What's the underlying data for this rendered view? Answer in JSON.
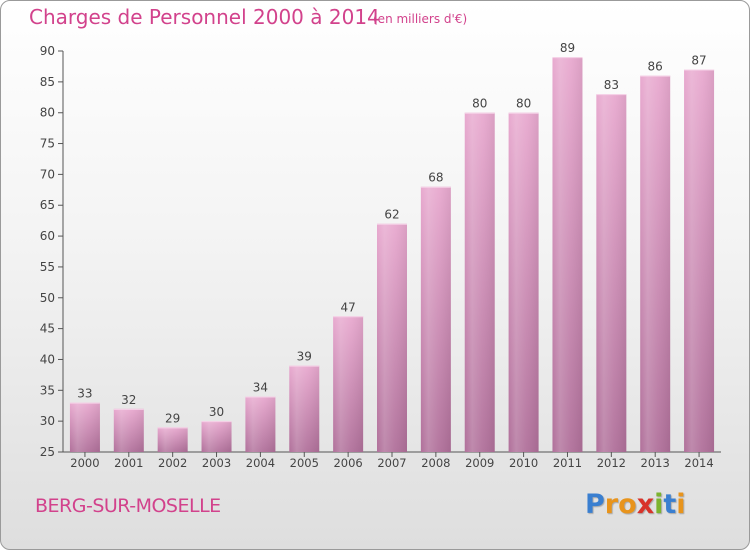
{
  "title": "Charges de Personnel 2000 à 2014",
  "subtitle": "(en milliers d'€)",
  "location": "BERG-SUR-MOSELLE",
  "logo": {
    "text": "Proxiti",
    "letters": [
      {
        "ch": "P",
        "color": "#3a7fd0"
      },
      {
        "ch": "r",
        "color": "#e8941c"
      },
      {
        "ch": "o",
        "color": "#e8941c"
      },
      {
        "ch": "x",
        "color": "#d8332a"
      },
      {
        "ch": "i",
        "color": "#7cb32e"
      },
      {
        "ch": "t",
        "color": "#3a7fd0"
      },
      {
        "ch": "i",
        "color": "#e8941c"
      }
    ]
  },
  "colors": {
    "accent": "#d2428c",
    "bar_top": "#e8a9cf",
    "bar_bottom": "#b0709a",
    "axis": "#555555"
  },
  "chart_data": {
    "type": "bar",
    "categories": [
      "2000",
      "2001",
      "2002",
      "2003",
      "2004",
      "2005",
      "2006",
      "2007",
      "2008",
      "2009",
      "2010",
      "2011",
      "2012",
      "2013",
      "2014"
    ],
    "values": [
      33,
      32,
      29,
      30,
      34,
      39,
      47,
      62,
      68,
      80,
      80,
      89,
      83,
      86,
      87
    ],
    "title": "Charges de Personnel 2000 à 2014",
    "xlabel": "",
    "ylabel": "",
    "ylim": [
      25,
      90
    ],
    "yticks": [
      25,
      30,
      35,
      40,
      45,
      50,
      55,
      60,
      65,
      70,
      75,
      80,
      85,
      90
    ],
    "grid": false
  }
}
